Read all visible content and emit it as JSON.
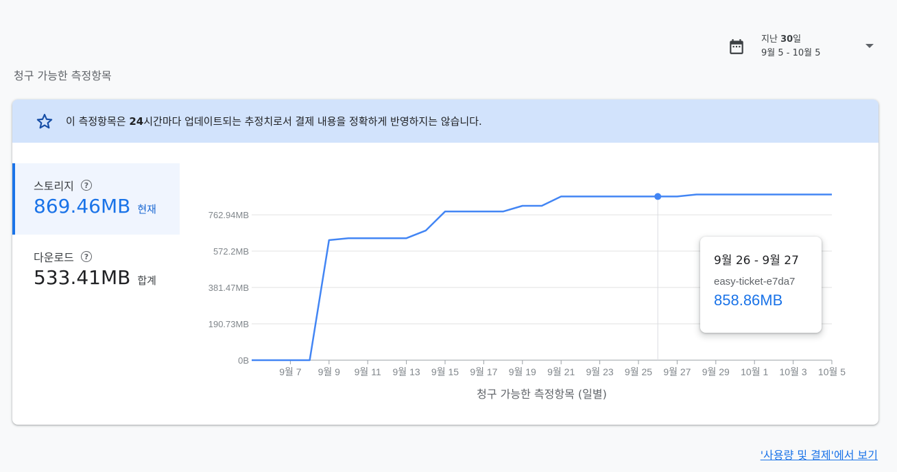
{
  "date_range": {
    "prefix": "지난 ",
    "days": "30",
    "suffix": "일",
    "range": "9월 5 - 10월 5",
    "icon": "calendar-icon"
  },
  "section_title": "청구 가능한 측정항목",
  "banner": {
    "icon": "star-icon",
    "text_before": "이 측정항목은 ",
    "text_bold": "24",
    "text_after": "시간마다 업데이트되는 추정치로서 결제 내용을 정확하게 반영하지는 않습니다."
  },
  "metrics": [
    {
      "label": "스토리지",
      "value": "869.46MB",
      "unit": "현재",
      "active": true
    },
    {
      "label": "다운로드",
      "value": "533.41MB",
      "unit": "합계",
      "active": false
    }
  ],
  "tooltip": {
    "date": "9월 26 - 9월 27",
    "series": "easy-ticket-e7da7",
    "value": "858.86MB"
  },
  "footer_link": "'사용량 및 결제'에서 보기",
  "colors": {
    "line": "#4285f4",
    "accent": "#1a73e8",
    "banner_bg": "#d2e3fc"
  },
  "chart_data": {
    "type": "line",
    "xlabel": "청구 가능한 측정항목 (일별)",
    "ylabel": "",
    "y_tick_labels": [
      "0B",
      "190.73MB",
      "381.47MB",
      "572.2MB",
      "762.94MB"
    ],
    "y_ticks_mb": [
      0,
      190.73,
      381.47,
      572.2,
      762.94
    ],
    "ylim_mb": [
      0,
      900
    ],
    "x_tick_labels": [
      "9월 7",
      "9월 9",
      "9월 11",
      "9월 13",
      "9월 15",
      "9월 17",
      "9월 19",
      "9월 21",
      "9월 23",
      "9월 25",
      "9월 27",
      "9월 29",
      "10월 1",
      "10월 3",
      "10월 5"
    ],
    "categories": [
      "9월 5",
      "9월 6",
      "9월 7",
      "9월 8",
      "9월 9",
      "9월 10",
      "9월 11",
      "9월 12",
      "9월 13",
      "9월 14",
      "9월 15",
      "9월 16",
      "9월 17",
      "9월 18",
      "9월 19",
      "9월 20",
      "9월 21",
      "9월 22",
      "9월 23",
      "9월 24",
      "9월 25",
      "9월 26",
      "9월 27",
      "9월 28",
      "9월 29",
      "9월 30",
      "10월 1",
      "10월 2",
      "10월 3",
      "10월 4",
      "10월 5"
    ],
    "series": [
      {
        "values": [
          0,
          0,
          0,
          0,
          630,
          640,
          640,
          640,
          640,
          680,
          780,
          780,
          780,
          780,
          810,
          810,
          858.86,
          858.86,
          858.86,
          858.86,
          858.86,
          858.86,
          858.86,
          869.46,
          869.46,
          869.46,
          869.46,
          869.46,
          869.46,
          869.46,
          869.46
        ]
      }
    ],
    "highlight_index": 21,
    "grid": true
  }
}
